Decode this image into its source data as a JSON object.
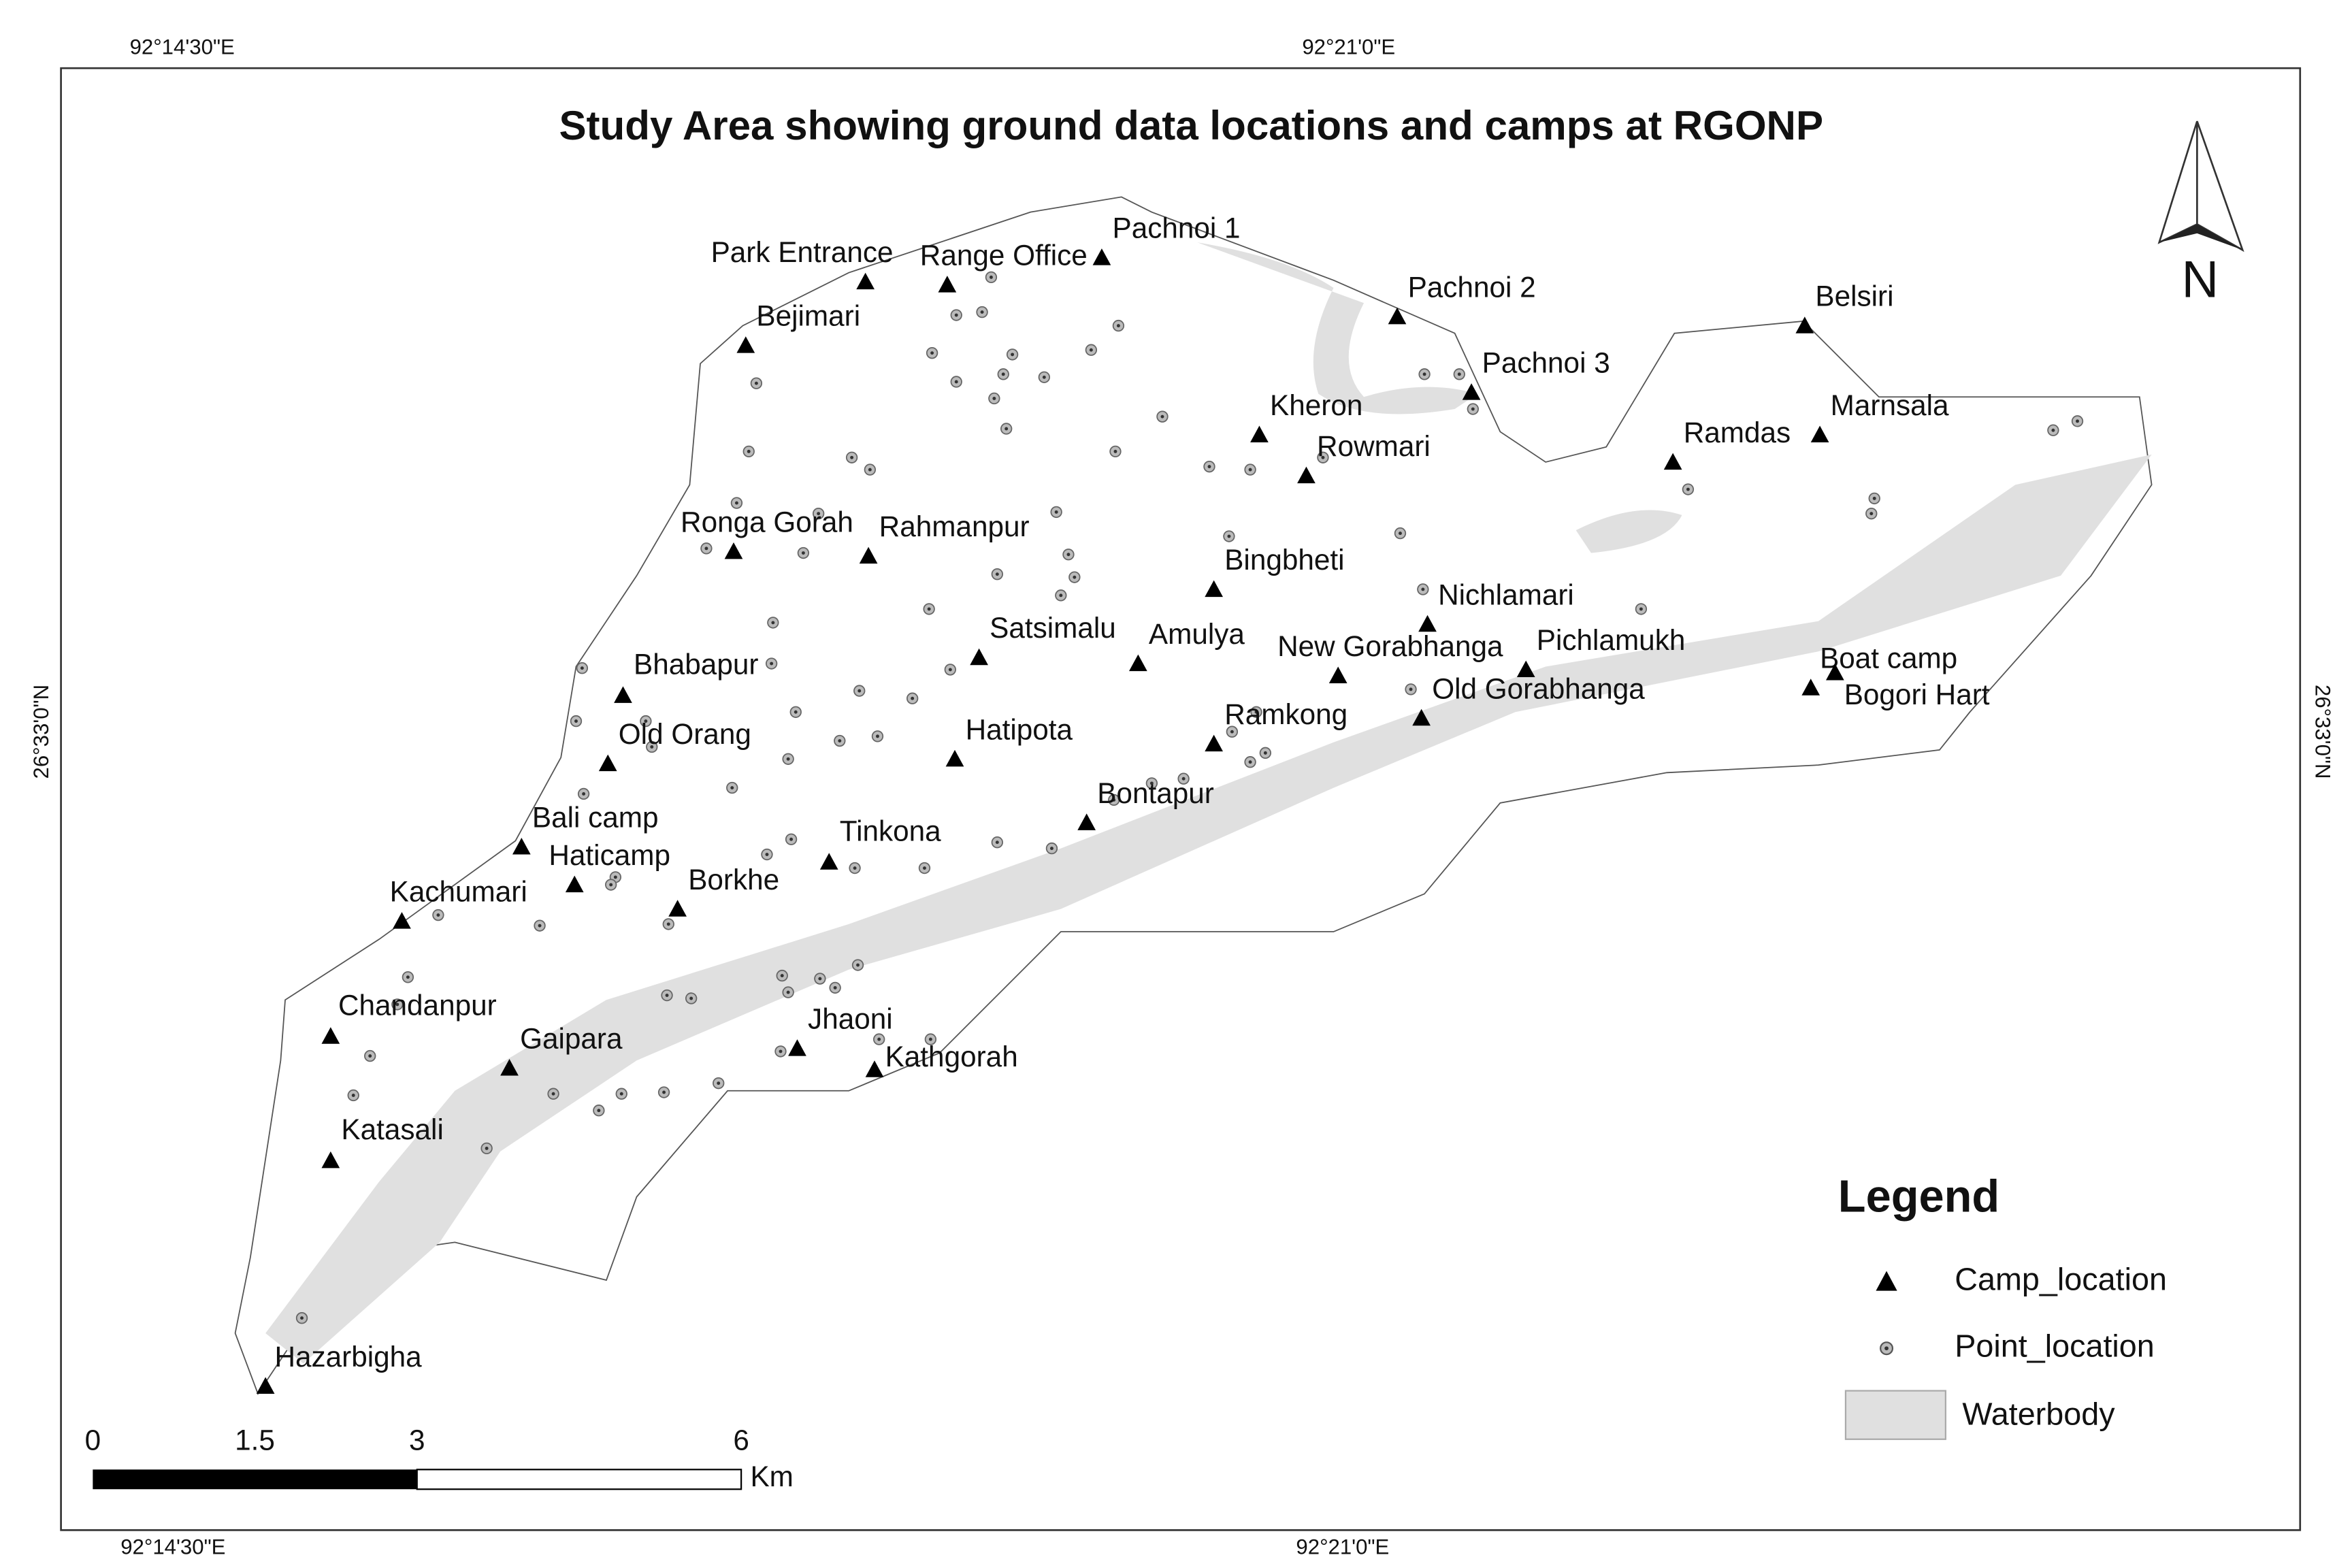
{
  "title": "Study Area showing ground data locations and camps at RGONP",
  "graticule": {
    "top": [
      "92°14'30\"E",
      "92°21'0\"E"
    ],
    "bottom": [
      "92°14'30\"E",
      "92°21'0\"E"
    ],
    "left": [
      "26°33'0\"N"
    ],
    "right": [
      "26°33'0\"N"
    ]
  },
  "north_arrow": "N",
  "camps": [
    "Park Entrance",
    "Range Office",
    "Pachnoi 1",
    "Bejimari",
    "Pachnoi 2",
    "Pachnoi 3",
    "Belsiri",
    "Kheron",
    "Rowmari",
    "Marnsala",
    "Ramdas",
    "Ronga Gorah",
    "Rahmanpur",
    "Bingbheti",
    "Nichlamari",
    "Satsimalu",
    "Amulya",
    "New Gorabhanga",
    "Pichlamukh",
    "Boat camp",
    "Bogori Hart",
    "Bhabapur",
    "Old Gorabhanga",
    "Old Orang",
    "Hatipota",
    "Ramkong",
    "Bontapur",
    "Bali camp",
    "Tinkona",
    "Haticamp",
    "Borkhe",
    "Kachumari",
    "Chandanpur",
    "Gaipara",
    "Jhaoni",
    "Kathgorah",
    "Katasali",
    "Hazarbigha"
  ],
  "legend": {
    "title": "Legend",
    "items": [
      "Camp_location",
      "Point_location",
      "Waterbody"
    ]
  },
  "scale_bar": {
    "labels": [
      "0",
      "1.5",
      "3",
      "6"
    ],
    "unit": "Km"
  }
}
